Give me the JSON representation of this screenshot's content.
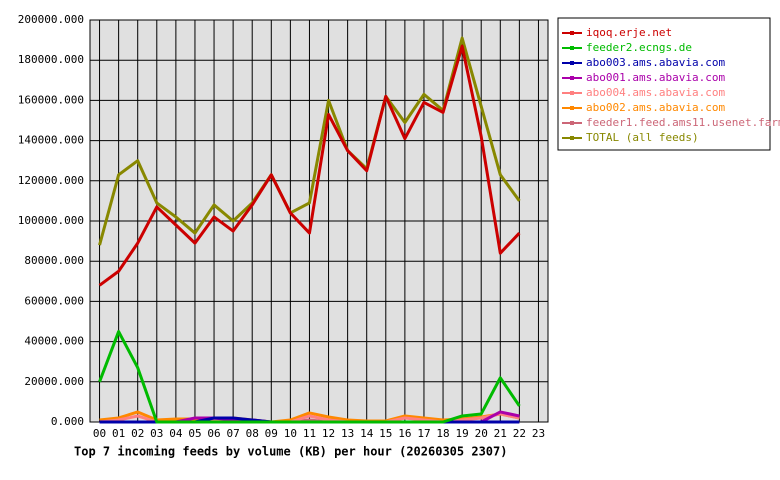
{
  "chart_data": {
    "type": "line",
    "title": "Top 7 incoming feeds by volume (KB) per hour (20260305 2307)",
    "categories": [
      "00",
      "01",
      "02",
      "03",
      "04",
      "05",
      "06",
      "07",
      "08",
      "09",
      "10",
      "11",
      "12",
      "13",
      "14",
      "15",
      "16",
      "17",
      "18",
      "19",
      "20",
      "21",
      "22",
      "23"
    ],
    "series": [
      {
        "name": "iqoq.erje.net",
        "color": "#cc0000",
        "values": [
          68000,
          75000,
          89000,
          107000,
          98000,
          89000,
          102000,
          95000,
          108000,
          123000,
          104000,
          94000,
          153000,
          135000,
          125000,
          162000,
          141000,
          159000,
          154000,
          187000,
          142000,
          84000,
          94000,
          null
        ]
      },
      {
        "name": "feeder2.ecngs.de",
        "color": "#00bb00",
        "values": [
          20000,
          45000,
          27000,
          0,
          0,
          0,
          0,
          0,
          0,
          0,
          0,
          0,
          0,
          0,
          0,
          0,
          0,
          0,
          0,
          3000,
          4000,
          22000,
          8000,
          null
        ]
      },
      {
        "name": "abo003.ams.abavia.com",
        "color": "#0000aa",
        "values": [
          0,
          0,
          0,
          0,
          0,
          0,
          2000,
          2000,
          1000,
          0,
          0,
          0,
          0,
          0,
          0,
          0,
          0,
          0,
          0,
          0,
          0,
          0,
          0,
          null
        ]
      },
      {
        "name": "abo001.ams.abavia.com",
        "color": "#aa00aa",
        "values": [
          0,
          0,
          0,
          0,
          0,
          2000,
          2000,
          1000,
          1000,
          0,
          0,
          0,
          0,
          0,
          0,
          0,
          0,
          0,
          0,
          0,
          0,
          5000,
          3000,
          null
        ]
      },
      {
        "name": "abo004.ams.abavia.com",
        "color": "#ff8080",
        "values": [
          0,
          1000,
          3000,
          0,
          0,
          0,
          1000,
          1000,
          0,
          0,
          0,
          3000,
          1000,
          0,
          0,
          0,
          2000,
          1000,
          0,
          1000,
          2000,
          4000,
          2000,
          null
        ]
      },
      {
        "name": "abo002.ams.abavia.com",
        "color": "#ff8800",
        "values": [
          1000,
          2000,
          5000,
          1000,
          1500,
          1500,
          2000,
          2000,
          1000,
          0,
          1000,
          4500,
          2500,
          1000,
          500,
          500,
          3000,
          2000,
          1000,
          1500,
          2500,
          4000,
          2000,
          null
        ]
      },
      {
        "name": "feeder1.feed.ams11.usenet.farm",
        "color": "#cc6677",
        "values": [
          0,
          0,
          0,
          0,
          0,
          0,
          0,
          0,
          0,
          0,
          0,
          1000,
          0,
          0,
          0,
          0,
          0,
          0,
          0,
          0,
          0,
          0,
          0,
          null
        ]
      },
      {
        "name": "TOTAL (all feeds)",
        "color": "#888800",
        "values": [
          88000,
          123000,
          130000,
          109000,
          102000,
          94000,
          108000,
          100000,
          109000,
          123000,
          104000,
          109000,
          160000,
          135000,
          126000,
          162000,
          149000,
          163000,
          155000,
          191000,
          157000,
          123000,
          110000,
          null
        ]
      }
    ],
    "ylim": [
      0,
      200000
    ],
    "yticks": [
      {
        "value": 0,
        "label": "0.000"
      },
      {
        "value": 20000,
        "label": "20000.000"
      },
      {
        "value": 40000,
        "label": "40000.000"
      },
      {
        "value": 60000,
        "label": "60000.000"
      },
      {
        "value": 80000,
        "label": "80000.000"
      },
      {
        "value": 100000,
        "label": "100000.000"
      },
      {
        "value": 120000,
        "label": "120000.000"
      },
      {
        "value": 140000,
        "label": "140000.000"
      },
      {
        "value": 160000,
        "label": "160000.000"
      },
      {
        "value": 180000,
        "label": "180000.000"
      },
      {
        "value": 200000,
        "label": "200000.000"
      }
    ],
    "grid": true
  }
}
